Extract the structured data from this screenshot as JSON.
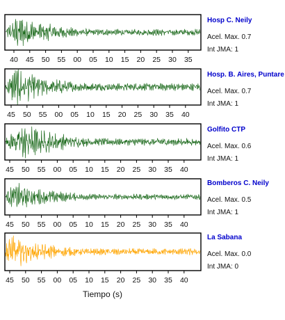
{
  "colors": {
    "primary_trace": "#1e6b1e",
    "last_trace": "#ffa500",
    "station_label": "#0000cc"
  },
  "stations": [
    {
      "name": "Hosp C. Neily",
      "accel": "Acel. Max. 0.7",
      "jma": "Int JMA: 1"
    },
    {
      "name": "Hosp. B. Aires, Puntare",
      "accel": "Acel. Max. 0.7",
      "jma": "Int JMA: 1"
    },
    {
      "name": "Golfito CTP",
      "accel": "Acel. Max. 0.6",
      "jma": "Int JMA: 1"
    },
    {
      "name": "Bomberos C. Neily",
      "accel": "Acel. Max. 0.5",
      "jma": "Int JMA: 1"
    },
    {
      "name": "La Sabana",
      "accel": "Acel. Max. 0.0",
      "jma": "Int JMA: 0"
    }
  ],
  "xlabel": "Tiempo (s)",
  "chart_data": [
    {
      "type": "line",
      "title": "Hosp C. Neily",
      "series": [
        {
          "color": "#1e6b1e"
        }
      ],
      "x_tick_labels": [
        "40",
        "45",
        "50",
        "55",
        "00",
        "05",
        "10",
        "15",
        "20",
        "25",
        "30",
        "35"
      ]
    },
    {
      "type": "line",
      "title": "Hosp. B. Aires, Puntare",
      "series": [
        {
          "color": "#1e6b1e"
        }
      ],
      "x_tick_labels": [
        "45",
        "50",
        "55",
        "00",
        "05",
        "10",
        "15",
        "20",
        "25",
        "30",
        "35",
        "40"
      ]
    },
    {
      "type": "line",
      "title": "Golfito CTP",
      "series": [
        {
          "color": "#1e6b1e"
        }
      ],
      "x_tick_labels": [
        "45",
        "50",
        "55",
        "00",
        "05",
        "10",
        "15",
        "20",
        "25",
        "30",
        "35",
        "40"
      ]
    },
    {
      "type": "line",
      "title": "Bomberos C. Neily",
      "series": [
        {
          "color": "#1e6b1e"
        }
      ],
      "x_tick_labels": [
        "45",
        "50",
        "55",
        "00",
        "05",
        "10",
        "15",
        "20",
        "25",
        "30",
        "35",
        "40"
      ]
    },
    {
      "type": "line",
      "title": "La Sabana",
      "series": [
        {
          "color": "#ffa500"
        }
      ],
      "x_tick_labels": [
        "45",
        "50",
        "55",
        "00",
        "05",
        "10",
        "15",
        "20",
        "25",
        "30",
        "35",
        "40"
      ]
    }
  ]
}
